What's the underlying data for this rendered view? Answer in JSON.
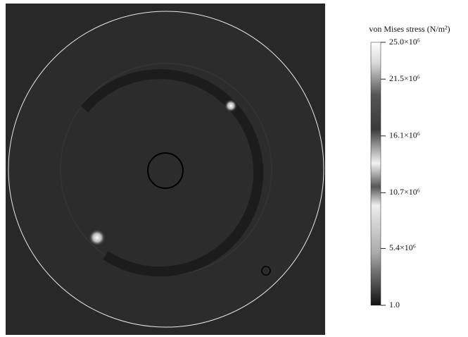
{
  "chart_data": {
    "type": "contour",
    "colorbar_title": "von Mises stress (N/m²)",
    "clim": [
      1,
      25000000
    ],
    "cticks": [
      {
        "value": 1,
        "label": "1.0"
      },
      {
        "value": 5400000,
        "label": "5.4×10⁶"
      },
      {
        "value": 10700000,
        "label": "10.7×10⁶"
      },
      {
        "value": 16100000,
        "label": "16.1×10⁶"
      },
      {
        "value": 21500000,
        "label": "21.5×10⁶"
      },
      {
        "value": 25000000,
        "label": "25.0×10⁶"
      }
    ]
  }
}
